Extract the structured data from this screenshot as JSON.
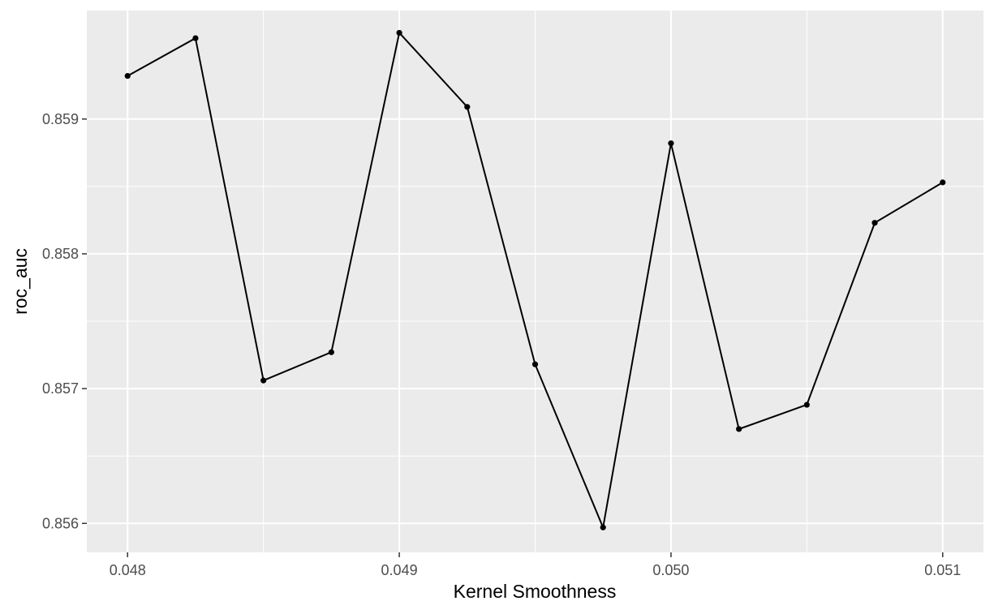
{
  "chart_data": {
    "type": "line",
    "title": "",
    "xlabel": "Kernel Smoothness",
    "ylabel": "roc_auc",
    "xlim": [
      0.04785,
      0.05115
    ],
    "ylim": [
      0.855785,
      0.859805
    ],
    "grid": true,
    "x_ticks": [
      0.048,
      0.049,
      0.05,
      0.051
    ],
    "x_tick_labels": [
      "0.048",
      "0.049",
      "0.050",
      "0.051"
    ],
    "y_ticks": [
      0.856,
      0.857,
      0.858,
      0.859
    ],
    "y_tick_labels": [
      "0.856",
      "0.857",
      "0.858",
      "0.859"
    ],
    "series": [
      {
        "x": [
          0.048,
          0.04825,
          0.0485,
          0.04875,
          0.049,
          0.04925,
          0.0495,
          0.04975,
          0.05,
          0.05025,
          0.0505,
          0.05075,
          0.051
        ],
        "y": [
          0.85932,
          0.8596,
          0.85706,
          0.85727,
          0.85964,
          0.85909,
          0.85718,
          0.85597,
          0.85882,
          0.8567,
          0.85688,
          0.85823,
          0.85853
        ]
      }
    ],
    "colors": {
      "panel": "#ebebeb",
      "grid": "#ffffff",
      "line": "#000000"
    }
  }
}
